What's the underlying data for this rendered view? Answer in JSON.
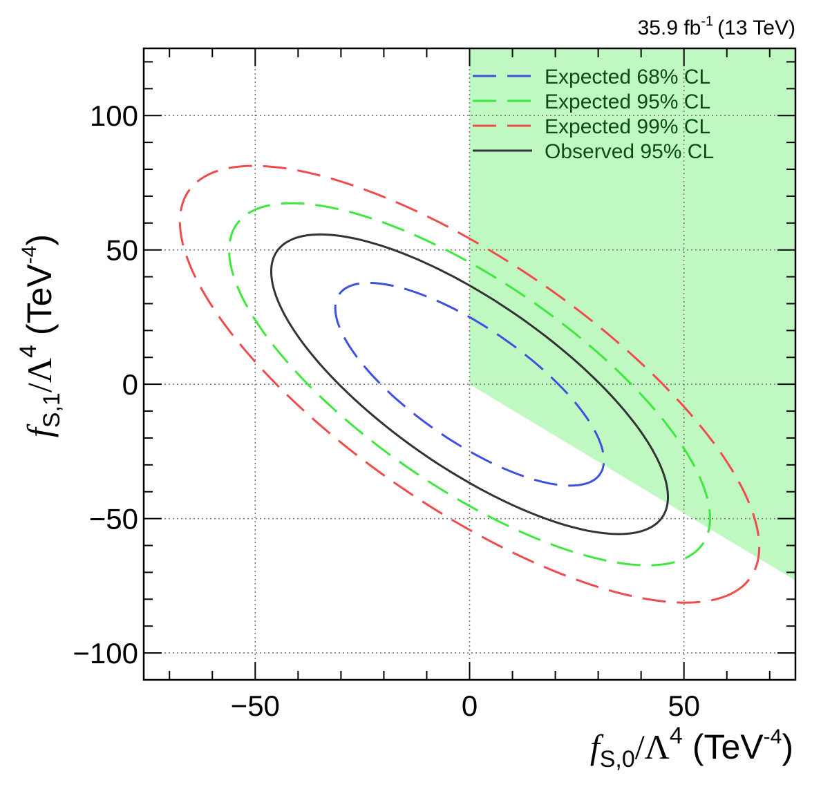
{
  "chart_data": {
    "type": "contour",
    "luminosity_label": {
      "value": "35.9 fb",
      "exponent": "-1",
      "energy": "(13 TeV)"
    },
    "xlabel": {
      "base": "f",
      "sub": "S,0",
      "rest": "/Λ",
      "power": "4",
      "unit": "(TeV",
      "unit_power": "-4",
      "close": ")"
    },
    "ylabel": {
      "base": "f",
      "sub": "S,1",
      "rest": "/Λ",
      "power": "4",
      "unit": "(TeV",
      "unit_power": "-4",
      "close": ")"
    },
    "xlim": [
      -76,
      76
    ],
    "ylim": [
      -110,
      125
    ],
    "xticks": [
      -50,
      0,
      50
    ],
    "xtick_labels": [
      "−50",
      "0",
      "50"
    ],
    "yticks": [
      -100,
      -50,
      0,
      50,
      100
    ],
    "ytick_labels": [
      "−100",
      "−50",
      "0",
      "50",
      "100"
    ],
    "grid": true,
    "legend_position": "top-right",
    "series": [
      {
        "name": "Expected 68% CL",
        "color": "#3f4fe0",
        "style": "dashed",
        "ellipse": {
          "cx": 0,
          "cy": 0,
          "a": 46,
          "b": 17,
          "angle_deg": -52
        }
      },
      {
        "name": "Expected 95% CL",
        "color": "#3ee83e",
        "style": "dashed",
        "ellipse": {
          "cx": 0,
          "cy": 0,
          "a": 82,
          "b": 31,
          "angle_deg": -52
        }
      },
      {
        "name": "Expected 99% CL",
        "color": "#ee4b4b",
        "stroke2": "#b0361e",
        "style": "dashed",
        "ellipse": {
          "cx": 0,
          "cy": 0,
          "a": 99,
          "b": 37,
          "angle_deg": -52
        }
      },
      {
        "name": "Observed 95% CL",
        "color": "#333333",
        "style": "solid",
        "ellipse": {
          "cx": 0,
          "cy": 0,
          "a": 68,
          "b": 25,
          "angle_deg": -52
        }
      }
    ],
    "shaded_region": {
      "description_color": "#bff8c0",
      "polygon": [
        [
          0,
          125
        ],
        [
          76,
          125
        ],
        [
          76,
          -73
        ],
        [
          0,
          0
        ]
      ]
    }
  }
}
